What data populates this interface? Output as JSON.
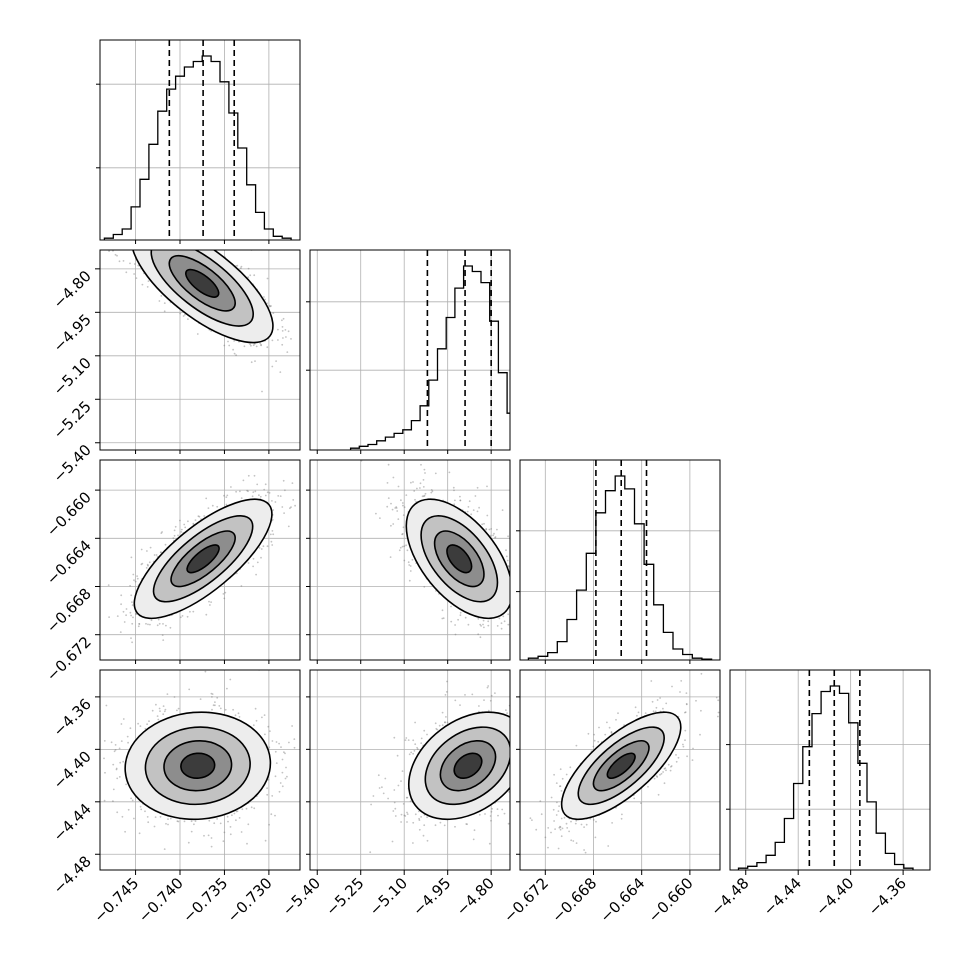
{
  "chart_data": {
    "type": "corner",
    "grid": true,
    "params": [
      {
        "ticks": [
          -0.745,
          -0.74,
          -0.735,
          -0.73
        ],
        "tick_labels": [
          "−0.745",
          "−0.740",
          "−0.735",
          "−0.730"
        ],
        "range": [
          -0.749,
          -0.7265
        ],
        "quantiles": [
          -0.7412,
          -0.7374,
          -0.7339
        ],
        "hist_x": [
          -0.748,
          -0.747,
          -0.746,
          -0.745,
          -0.744,
          -0.743,
          -0.742,
          -0.741,
          -0.74,
          -0.739,
          -0.738,
          -0.737,
          -0.736,
          -0.735,
          -0.734,
          -0.733,
          -0.732,
          -0.731,
          -0.73,
          -0.729,
          -0.728
        ],
        "hist_y": [
          0.01,
          0.03,
          0.06,
          0.18,
          0.33,
          0.52,
          0.7,
          0.82,
          0.89,
          0.94,
          0.97,
          1.0,
          0.97,
          0.86,
          0.69,
          0.5,
          0.3,
          0.15,
          0.06,
          0.02,
          0.01
        ],
        "hist_ticks": [
          0.38,
          0.82
        ]
      },
      {
        "ticks": [
          -5.4,
          -5.25,
          -5.1,
          -4.95,
          -4.8
        ],
        "tick_labels": [
          "−5.40",
          "−5.25",
          "−5.10",
          "−4.95",
          "−4.80"
        ],
        "range": [
          -5.425,
          -4.735
        ],
        "quantiles": [
          -5.02,
          -4.89,
          -4.8
        ],
        "hist_x": [
          -5.27,
          -5.24,
          -5.21,
          -5.18,
          -5.15,
          -5.12,
          -5.09,
          -5.06,
          -5.03,
          -5.0,
          -4.97,
          -4.94,
          -4.91,
          -4.88,
          -4.85,
          -4.82,
          -4.79,
          -4.76,
          -4.73
        ],
        "hist_y": [
          0.01,
          0.02,
          0.03,
          0.05,
          0.07,
          0.09,
          0.11,
          0.16,
          0.24,
          0.38,
          0.55,
          0.72,
          0.88,
          1.0,
          0.97,
          0.91,
          0.7,
          0.42,
          0.2
        ],
        "hist_ticks": [
          0.42,
          0.78
        ]
      },
      {
        "ticks": [
          -0.672,
          -0.668,
          -0.664,
          -0.66
        ],
        "tick_labels": [
          "−0.672",
          "−0.668",
          "−0.664",
          "−0.660"
        ],
        "range": [
          -0.6741,
          -0.6575
        ],
        "quantiles": [
          -0.6678,
          -0.6657,
          -0.6636
        ],
        "hist_x": [
          -0.673,
          -0.6722,
          -0.6714,
          -0.6706,
          -0.6698,
          -0.669,
          -0.6682,
          -0.6674,
          -0.6666,
          -0.6658,
          -0.665,
          -0.6642,
          -0.6634,
          -0.6626,
          -0.6618,
          -0.661,
          -0.6602,
          -0.6594,
          -0.6586
        ],
        "hist_y": [
          0.01,
          0.02,
          0.04,
          0.1,
          0.22,
          0.38,
          0.58,
          0.8,
          0.92,
          1.0,
          0.93,
          0.74,
          0.52,
          0.3,
          0.15,
          0.06,
          0.03,
          0.01,
          0.005
        ],
        "hist_ticks": [
          0.36,
          0.68
        ]
      },
      {
        "ticks": [
          -4.48,
          -4.44,
          -4.4,
          -4.36
        ],
        "tick_labels": [
          "−4.48",
          "−4.44",
          "−4.40",
          "−4.36"
        ],
        "range": [
          -4.492,
          -4.3395
        ],
        "quantiles": [
          -4.4315,
          -4.4125,
          -4.393
        ],
        "hist_x": [
          -4.482,
          -4.475,
          -4.468,
          -4.461,
          -4.454,
          -4.447,
          -4.44,
          -4.433,
          -4.426,
          -4.419,
          -4.412,
          -4.405,
          -4.398,
          -4.391,
          -4.384,
          -4.377,
          -4.37,
          -4.363,
          -4.356
        ],
        "hist_y": [
          0.01,
          0.02,
          0.04,
          0.08,
          0.15,
          0.28,
          0.47,
          0.67,
          0.85,
          0.97,
          1.0,
          0.96,
          0.8,
          0.58,
          0.37,
          0.2,
          0.09,
          0.03,
          0.01
        ],
        "hist_ticks": [
          0.32,
          0.66
        ]
      }
    ],
    "pairs": [
      {
        "col": 0,
        "row": 1,
        "mean": [
          -0.7375,
          -4.85
        ],
        "sd": [
          0.0037,
          0.095
        ],
        "rho": -0.72
      },
      {
        "col": 0,
        "row": 2,
        "mean": [
          -0.7374,
          -0.6657
        ],
        "sd": [
          0.0036,
          0.0023
        ],
        "rho": 0.75
      },
      {
        "col": 0,
        "row": 3,
        "mean": [
          -0.738,
          -4.4125
        ],
        "sd": [
          0.0038,
          0.019
        ],
        "rho": 0.05
      },
      {
        "col": 1,
        "row": 2,
        "mean": [
          -4.91,
          -0.6657
        ],
        "sd": [
          0.085,
          0.0023
        ],
        "rho": -0.55
      },
      {
        "col": 1,
        "row": 3,
        "mean": [
          -4.88,
          -4.4125
        ],
        "sd": [
          0.095,
          0.019
        ],
        "rho": 0.35
      },
      {
        "col": 2,
        "row": 3,
        "mean": [
          -0.6657,
          -4.4125
        ],
        "sd": [
          0.0023,
          0.019
        ],
        "rho": 0.72
      }
    ]
  }
}
